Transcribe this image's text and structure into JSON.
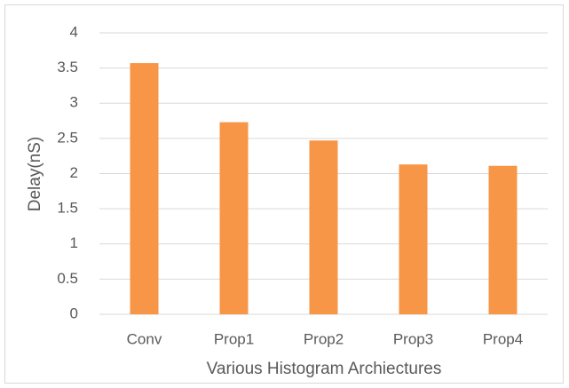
{
  "chart_data": {
    "type": "bar",
    "categories": [
      "Conv",
      "Prop1",
      "Prop2",
      "Prop3",
      "Prop4"
    ],
    "values": [
      3.57,
      2.73,
      2.47,
      2.13,
      2.11
    ],
    "color": "#f79646",
    "x_label": "Various Histogram Archiectures",
    "y_label": "Delay(nS)",
    "ylim": [
      0,
      4
    ],
    "yticks": [
      0,
      0.5,
      1,
      1.5,
      2,
      2.5,
      3,
      3.5,
      4
    ],
    "grid": true
  }
}
